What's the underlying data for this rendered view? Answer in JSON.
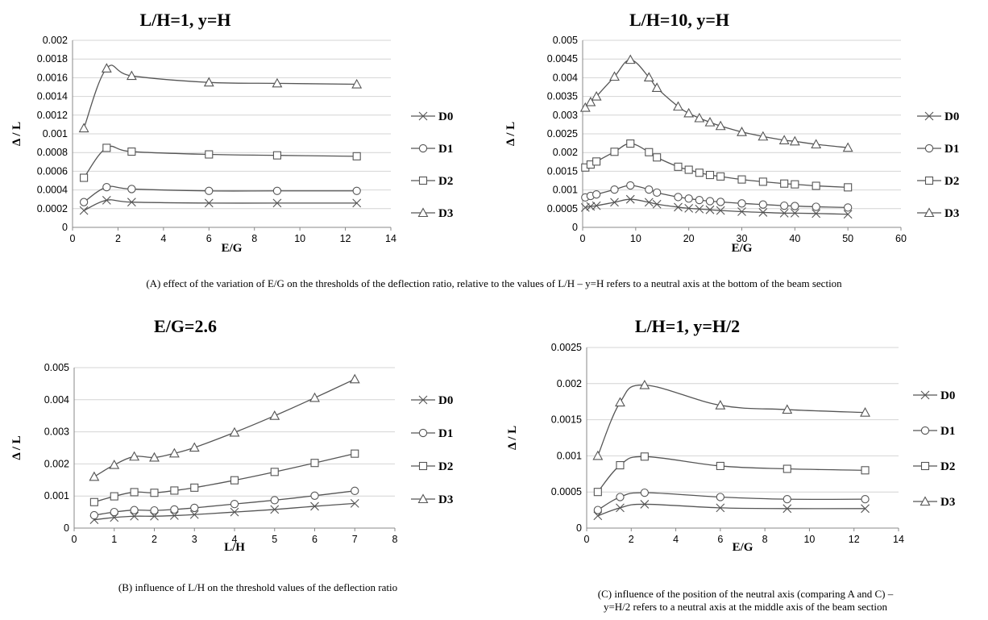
{
  "captions": {
    "a": "(A) effect of the variation of E/G on the thresholds of the deflection ratio, relative to the values of L/H – y=H refers to a neutral axis at the bottom of the beam section",
    "b": "(B) influence of L/H on the threshold values of the deflection ratio",
    "c1": "(C) influence of the position of the neutral axis (comparing A and C) –",
    "c2": "y=H/2 refers to a neutral axis at the middle axis of the beam section"
  },
  "chart_data": [
    {
      "type": "line",
      "title": "L/H=1, y=H",
      "xlabel": "E/G",
      "ylabel": "Δ / L",
      "xlim": [
        0,
        14
      ],
      "ylim": [
        0,
        0.002
      ],
      "xticks": [
        0,
        2,
        4,
        6,
        8,
        10,
        12,
        14
      ],
      "xtick_labels": [
        "0",
        "2",
        "4",
        "6",
        "8",
        "10",
        "12",
        "14"
      ],
      "yticks": [
        0,
        0.0002,
        0.0004,
        0.0006,
        0.0008,
        0.001,
        0.0012,
        0.0014,
        0.0016,
        0.0018,
        0.002
      ],
      "ytick_labels": [
        "0",
        "0.0002",
        "0.0004",
        "0.0006",
        "0.0008",
        "0.001",
        "0.0012",
        "0.0014",
        "0.0016",
        "0.0018",
        "0.002"
      ],
      "grid": "horizontal",
      "legend": "right",
      "x": [
        0.5,
        1.5,
        2.6,
        6,
        9,
        12.5
      ],
      "series": [
        {
          "name": "D0",
          "marker": "x",
          "values": [
            0.00018,
            0.00029,
            0.00027,
            0.00026,
            0.00026,
            0.00026
          ]
        },
        {
          "name": "D1",
          "marker": "o",
          "values": [
            0.00027,
            0.00043,
            0.00041,
            0.00039,
            0.00039,
            0.00039
          ]
        },
        {
          "name": "D2",
          "marker": "s",
          "values": [
            0.00053,
            0.00085,
            0.00081,
            0.00078,
            0.00077,
            0.00076
          ]
        },
        {
          "name": "D3",
          "marker": "^",
          "values": [
            0.00106,
            0.0017,
            0.00162,
            0.00155,
            0.00154,
            0.00153
          ]
        }
      ]
    },
    {
      "type": "line",
      "title": "L/H=10, y=H",
      "xlabel": "E/G",
      "ylabel": "Δ / L",
      "xlim": [
        0,
        60
      ],
      "ylim": [
        0,
        0.005
      ],
      "xticks": [
        0,
        10,
        20,
        30,
        40,
        50,
        60
      ],
      "xtick_labels": [
        "0",
        "10",
        "20",
        "30",
        "40",
        "50",
        "60"
      ],
      "yticks": [
        0,
        0.0005,
        0.001,
        0.0015,
        0.002,
        0.0025,
        0.003,
        0.0035,
        0.004,
        0.0045,
        0.005
      ],
      "ytick_labels": [
        "0",
        "0.0005",
        "0.001",
        "0.0015",
        "0.002",
        "0.0025",
        "0.003",
        "0.0035",
        "0.004",
        "0.0045",
        "0.005"
      ],
      "grid": "horizontal",
      "legend": "right",
      "x": [
        0.5,
        1.5,
        2.6,
        6,
        9,
        12.5,
        14,
        18,
        20,
        22,
        24,
        26,
        30,
        34,
        38,
        40,
        44,
        50
      ],
      "series": [
        {
          "name": "D0",
          "marker": "x",
          "values": [
            0.00053,
            0.00056,
            0.00058,
            0.00067,
            0.00075,
            0.00067,
            0.00062,
            0.00054,
            0.00051,
            0.00049,
            0.00047,
            0.00045,
            0.00042,
            0.0004,
            0.00038,
            0.00038,
            0.00037,
            0.00035
          ]
        },
        {
          "name": "D1",
          "marker": "o",
          "values": [
            0.0008,
            0.00084,
            0.00088,
            0.00101,
            0.00112,
            0.00101,
            0.00093,
            0.00081,
            0.00077,
            0.00073,
            0.0007,
            0.00068,
            0.00064,
            0.00061,
            0.00058,
            0.00057,
            0.00055,
            0.00053
          ]
        },
        {
          "name": "D2",
          "marker": "s",
          "values": [
            0.0016,
            0.00168,
            0.00176,
            0.00202,
            0.00224,
            0.00201,
            0.00187,
            0.00162,
            0.00154,
            0.00146,
            0.0014,
            0.00136,
            0.00128,
            0.00122,
            0.00117,
            0.00115,
            0.00111,
            0.00107
          ]
        },
        {
          "name": "D3",
          "marker": "^",
          "values": [
            0.0032,
            0.00335,
            0.0035,
            0.00403,
            0.00448,
            0.00401,
            0.00373,
            0.00323,
            0.00305,
            0.00292,
            0.00281,
            0.00271,
            0.00255,
            0.00243,
            0.00233,
            0.0023,
            0.00222,
            0.00213
          ]
        }
      ]
    },
    {
      "type": "line",
      "title": "E/G=2.6",
      "xlabel": "L/H",
      "ylabel": "Δ / L",
      "xlim": [
        0,
        8
      ],
      "ylim": [
        0,
        0.005
      ],
      "xticks": [
        0,
        1,
        2,
        3,
        4,
        5,
        6,
        7,
        8
      ],
      "xtick_labels": [
        "0",
        "1",
        "2",
        "3",
        "4",
        "5",
        "6",
        "7",
        "8"
      ],
      "yticks": [
        0,
        0.001,
        0.002,
        0.003,
        0.004,
        0.005
      ],
      "ytick_labels": [
        "0",
        "0.001",
        "0.002",
        "0.003",
        "0.004",
        "0.005"
      ],
      "grid": "horizontal",
      "legend": "right",
      "x": [
        0.5,
        1,
        1.5,
        2,
        2.5,
        3,
        4,
        5,
        6,
        7
      ],
      "series": [
        {
          "name": "D0",
          "marker": "x",
          "values": [
            0.00026,
            0.00033,
            0.00037,
            0.00037,
            0.00039,
            0.00042,
            0.0005,
            0.00058,
            0.00068,
            0.00077
          ]
        },
        {
          "name": "D1",
          "marker": "o",
          "values": [
            0.0004,
            0.0005,
            0.00056,
            0.00055,
            0.00058,
            0.00063,
            0.00075,
            0.00087,
            0.00101,
            0.00116
          ]
        },
        {
          "name": "D2",
          "marker": "s",
          "values": [
            0.00081,
            0.00099,
            0.00112,
            0.0011,
            0.00117,
            0.00126,
            0.00149,
            0.00175,
            0.00203,
            0.00232
          ]
        },
        {
          "name": "D3",
          "marker": "^",
          "values": [
            0.0016,
            0.00197,
            0.00223,
            0.0022,
            0.00233,
            0.00251,
            0.00298,
            0.0035,
            0.00406,
            0.00464
          ]
        }
      ]
    },
    {
      "type": "line",
      "title": "L/H=1, y=H/2",
      "xlabel": "E/G",
      "ylabel": "Δ / L",
      "xlim": [
        0,
        14
      ],
      "ylim": [
        0,
        0.0025
      ],
      "xticks": [
        0,
        2,
        4,
        6,
        8,
        10,
        12,
        14
      ],
      "xtick_labels": [
        "0",
        "2",
        "4",
        "6",
        "8",
        "10",
        "12",
        "14"
      ],
      "yticks": [
        0,
        0.0005,
        0.001,
        0.0015,
        0.002,
        0.0025
      ],
      "ytick_labels": [
        "0",
        "0.0005",
        "0.001",
        "0.0015",
        "0.002",
        "0.0025"
      ],
      "grid": "horizontal",
      "legend": "right",
      "x": [
        0.5,
        1.5,
        2.6,
        6,
        9,
        12.5
      ],
      "series": [
        {
          "name": "D0",
          "marker": "x",
          "values": [
            0.00017,
            0.00028,
            0.00033,
            0.00028,
            0.00027,
            0.00027
          ]
        },
        {
          "name": "D1",
          "marker": "o",
          "values": [
            0.00025,
            0.00043,
            0.00049,
            0.00043,
            0.0004,
            0.0004
          ]
        },
        {
          "name": "D2",
          "marker": "s",
          "values": [
            0.0005,
            0.00087,
            0.00099,
            0.00086,
            0.00082,
            0.0008
          ]
        },
        {
          "name": "D3",
          "marker": "^",
          "values": [
            0.001,
            0.00174,
            0.00198,
            0.0017,
            0.00164,
            0.0016
          ]
        }
      ]
    }
  ]
}
